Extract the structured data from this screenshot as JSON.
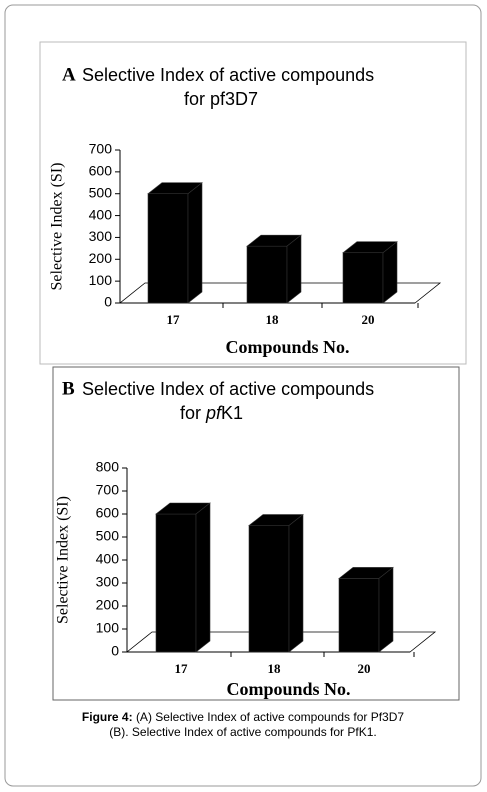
{
  "chart_data": [
    {
      "type": "bar3d",
      "panel_label": "A",
      "title_segments": [
        {
          "text": "Selective Index of active compounds",
          "italic": false
        },
        {
          "text": "for pf3D7",
          "italic": false
        }
      ],
      "y_label": "Selective Index (SI)",
      "x_label": "Compounds No.",
      "categories": [
        "17",
        "18",
        "20"
      ],
      "values": [
        500,
        260,
        230
      ],
      "color": "#000000",
      "ylim": [
        0,
        700
      ],
      "yticks": [
        0,
        100,
        200,
        300,
        400,
        500,
        600,
        700
      ],
      "grid": false
    },
    {
      "type": "bar3d",
      "panel_label": "B",
      "title_segments": [
        {
          "text": "Selective Index of active compounds",
          "italic": false
        },
        {
          "text": "for ",
          "italic": false
        },
        {
          "text": "pf",
          "italic": true
        },
        {
          "text": "K1",
          "italic": false
        }
      ],
      "y_label": "Selective Index (SI)",
      "x_label": "Compounds No.",
      "categories": [
        "17",
        "18",
        "20"
      ],
      "values": [
        600,
        550,
        320
      ],
      "color": "#000000",
      "ylim": [
        0,
        800
      ],
      "yticks": [
        0,
        100,
        200,
        300,
        400,
        500,
        600,
        700,
        800
      ],
      "grid": false
    }
  ],
  "caption": {
    "label": "Figure 4:",
    "lines": [
      "(A) Selective Index of active compounds for Pf3D7",
      "(B). Selective Index of active compounds for PfK1."
    ]
  }
}
